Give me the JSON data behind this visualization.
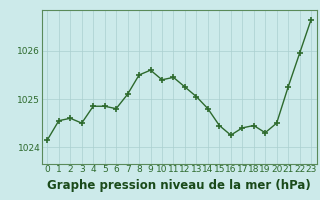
{
  "x": [
    0,
    1,
    2,
    3,
    4,
    5,
    6,
    7,
    8,
    9,
    10,
    11,
    12,
    13,
    14,
    15,
    16,
    17,
    18,
    19,
    20,
    21,
    22,
    23
  ],
  "y": [
    1024.15,
    1024.55,
    1024.6,
    1024.5,
    1024.85,
    1024.85,
    1024.8,
    1025.1,
    1025.5,
    1025.6,
    1025.4,
    1025.45,
    1025.25,
    1025.05,
    1024.8,
    1024.45,
    1024.25,
    1024.4,
    1024.45,
    1024.3,
    1024.5,
    1025.25,
    1025.95,
    1026.65
  ],
  "line_color": "#2d6a2d",
  "marker_color": "#2d6a2d",
  "bg_color": "#cceaea",
  "grid_color": "#aacfcf",
  "axis_color": "#2d6a2d",
  "spine_color": "#5a8a5a",
  "title": "Graphe pression niveau de la mer (hPa)",
  "title_color": "#1a4a1a",
  "yticks": [
    1024,
    1025,
    1026
  ],
  "ylim": [
    1023.65,
    1026.85
  ],
  "xlim": [
    -0.5,
    23.5
  ],
  "xticks": [
    0,
    1,
    2,
    3,
    4,
    5,
    6,
    7,
    8,
    9,
    10,
    11,
    12,
    13,
    14,
    15,
    16,
    17,
    18,
    19,
    20,
    21,
    22,
    23
  ],
  "title_fontsize": 8.5,
  "tick_fontsize": 6.5,
  "linewidth": 1.0,
  "markersize": 4
}
